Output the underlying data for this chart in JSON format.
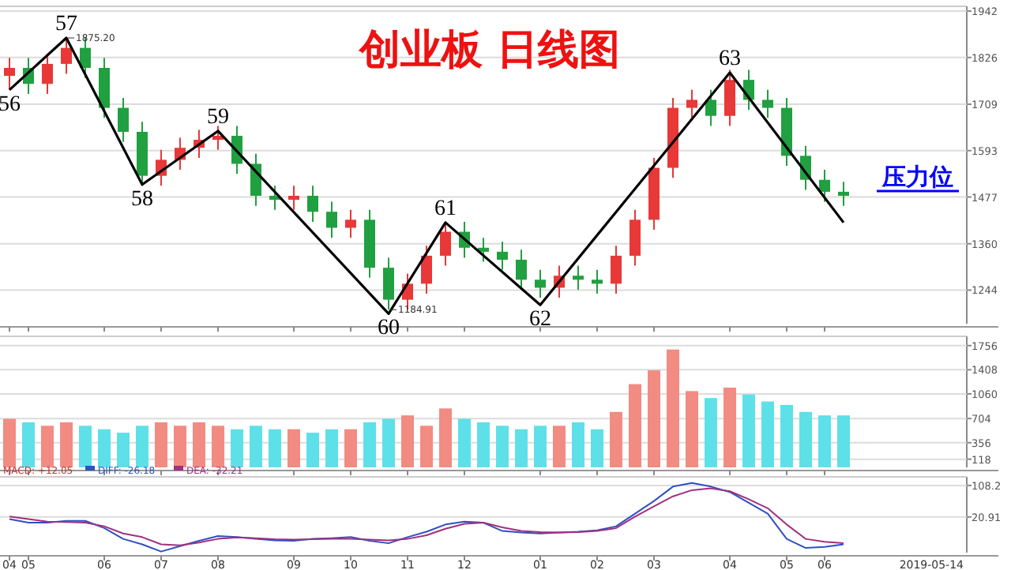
{
  "chart_data": [
    {
      "type": "candlestick",
      "title": "创业板  日线图",
      "ylim": [
        1160,
        1954
      ],
      "yticks": [
        1244,
        1360,
        1477,
        1593,
        1709,
        1826,
        1942
      ],
      "grid": "y",
      "tick_labels": "y",
      "categories": [
        "04",
        "05",
        null,
        null,
        null,
        "06",
        null,
        null,
        "07",
        null,
        null,
        "08",
        null,
        null,
        null,
        "09",
        null,
        null,
        "10",
        null,
        null,
        "11",
        null,
        null,
        "12",
        null,
        null,
        null,
        "01",
        null,
        null,
        "02",
        null,
        null,
        "03",
        null,
        null,
        null,
        "04",
        null,
        null,
        "05",
        null,
        "06",
        null,
        null,
        null,
        null,
        null,
        null,
        null
      ],
      "ohlc": [
        [
          1780,
          1825,
          1745,
          1800
        ],
        [
          1800,
          1825,
          1735,
          1760
        ],
        [
          1760,
          1835,
          1735,
          1810
        ],
        [
          1810,
          1875,
          1785,
          1850
        ],
        [
          1850,
          1875,
          1775,
          1800
        ],
        [
          1800,
          1825,
          1675,
          1700
        ],
        [
          1700,
          1725,
          1615,
          1640
        ],
        [
          1640,
          1665,
          1505,
          1530
        ],
        [
          1530,
          1595,
          1505,
          1570
        ],
        [
          1570,
          1625,
          1545,
          1600
        ],
        [
          1600,
          1645,
          1575,
          1620
        ],
        [
          1620,
          1655,
          1595,
          1630
        ],
        [
          1630,
          1655,
          1535,
          1560
        ],
        [
          1560,
          1585,
          1455,
          1480
        ],
        [
          1480,
          1505,
          1445,
          1470
        ],
        [
          1470,
          1505,
          1445,
          1480
        ],
        [
          1480,
          1505,
          1415,
          1440
        ],
        [
          1440,
          1465,
          1375,
          1400
        ],
        [
          1400,
          1445,
          1375,
          1420
        ],
        [
          1420,
          1445,
          1275,
          1300
        ],
        [
          1300,
          1325,
          1195,
          1220
        ],
        [
          1220,
          1285,
          1195,
          1260
        ],
        [
          1260,
          1355,
          1235,
          1330
        ],
        [
          1330,
          1415,
          1305,
          1390
        ],
        [
          1390,
          1415,
          1325,
          1350
        ],
        [
          1350,
          1375,
          1315,
          1340
        ],
        [
          1340,
          1365,
          1295,
          1320
        ],
        [
          1320,
          1345,
          1245,
          1270
        ],
        [
          1270,
          1295,
          1225,
          1250
        ],
        [
          1250,
          1305,
          1225,
          1280
        ],
        [
          1280,
          1305,
          1245,
          1270
        ],
        [
          1270,
          1295,
          1235,
          1260
        ],
        [
          1260,
          1355,
          1235,
          1330
        ],
        [
          1330,
          1445,
          1305,
          1420
        ],
        [
          1420,
          1575,
          1395,
          1550
        ],
        [
          1550,
          1725,
          1525,
          1700
        ],
        [
          1700,
          1745,
          1675,
          1720
        ],
        [
          1720,
          1745,
          1655,
          1680
        ],
        [
          1680,
          1795,
          1655,
          1770
        ],
        [
          1770,
          1795,
          1695,
          1720
        ],
        [
          1720,
          1745,
          1675,
          1700
        ],
        [
          1700,
          1725,
          1555,
          1580
        ],
        [
          1580,
          1605,
          1495,
          1520
        ],
        [
          1520,
          1545,
          1465,
          1490
        ],
        [
          1490,
          1515,
          1455,
          1480
        ],
        null,
        null,
        null,
        null,
        null,
        null
      ],
      "colors": [
        "#e83838",
        "#20a040",
        "#e83838",
        "#e83838",
        "#20a040",
        "#20a040",
        "#20a040",
        "#20a040",
        "#e83838",
        "#e83838",
        "#e83838",
        "#e83838",
        "#20a040",
        "#20a040",
        "#20a040",
        "#e83838",
        "#20a040",
        "#20a040",
        "#e83838",
        "#20a040",
        "#20a040",
        "#e83838",
        "#e83838",
        "#e83838",
        "#20a040",
        "#20a040",
        "#20a040",
        "#20a040",
        "#20a040",
        "#e83838",
        "#20a040",
        "#20a040",
        "#e83838",
        "#e83838",
        "#e83838",
        "#e83838",
        "#e83838",
        "#20a040",
        "#e83838",
        "#20a040",
        "#20a040",
        "#20a040",
        "#20a040",
        "#20a040",
        "#20a040",
        null,
        null,
        null,
        null,
        null,
        null
      ],
      "series": [
        {
          "type": "line",
          "color": "#000000",
          "values": [
            1745,
            null,
            null,
            1875,
            null,
            null,
            null,
            1508,
            null,
            null,
            null,
            1642,
            null,
            null,
            null,
            null,
            null,
            null,
            null,
            null,
            1185,
            null,
            null,
            1413,
            null,
            null,
            null,
            null,
            1207,
            null,
            null,
            null,
            null,
            null,
            null,
            null,
            null,
            null,
            1788,
            null,
            null,
            null,
            null,
            null,
            1413,
            null,
            null,
            null,
            null,
            null,
            null
          ]
        }
      ],
      "annotations": [
        {
          "text": "56",
          "y": 1745
        },
        {
          "text": "57",
          "y": 1875
        },
        {
          "text": "58",
          "y": 1508
        },
        {
          "text": "59",
          "y": 1642
        },
        {
          "text": "60",
          "y": 1185
        },
        {
          "text": "61",
          "y": 1413
        },
        {
          "text": "62",
          "y": 1207
        },
        {
          "text": "63",
          "y": 1788
        },
        "1875.20",
        "1184.91"
      ],
      "ref_lines": [
        {
          "axis": "y",
          "value": 1492,
          "label": "压力位",
          "color": "#0000ff"
        }
      ]
    },
    {
      "type": "bar",
      "ylim": [
        0,
        1890
      ],
      "yticks": [
        118,
        356,
        704,
        1060,
        1408,
        1756
      ],
      "grid": "y",
      "tick_labels": "y",
      "categories": [
        "04",
        "05",
        null,
        null,
        null,
        "06",
        null,
        null,
        "07",
        null,
        null,
        "08",
        null,
        null,
        null,
        "09",
        null,
        null,
        "10",
        null,
        null,
        "11",
        null,
        null,
        "12",
        null,
        null,
        null,
        "01",
        null,
        null,
        "02",
        null,
        null,
        "03",
        null,
        null,
        null,
        "04",
        null,
        null,
        "05",
        null,
        "06",
        null,
        null,
        null,
        null,
        null,
        null,
        null
      ],
      "values": [
        700,
        650,
        600,
        650,
        600,
        550,
        500,
        600,
        650,
        600,
        650,
        600,
        550,
        600,
        550,
        550,
        500,
        550,
        550,
        650,
        700,
        750,
        600,
        850,
        700,
        650,
        600,
        550,
        600,
        600,
        650,
        550,
        800,
        1200,
        1400,
        1700,
        1100,
        1000,
        1150,
        1050,
        950,
        900,
        800,
        750,
        750,
        null,
        null,
        null,
        null,
        null,
        null
      ],
      "colors": [
        "#f28b82",
        "#5ee0e8",
        "#f28b82",
        "#f28b82",
        "#5ee0e8",
        "#5ee0e8",
        "#5ee0e8",
        "#5ee0e8",
        "#f28b82",
        "#f28b82",
        "#f28b82",
        "#f28b82",
        "#5ee0e8",
        "#5ee0e8",
        "#5ee0e8",
        "#f28b82",
        "#5ee0e8",
        "#5ee0e8",
        "#f28b82",
        "#5ee0e8",
        "#5ee0e8",
        "#f28b82",
        "#f28b82",
        "#f28b82",
        "#5ee0e8",
        "#5ee0e8",
        "#5ee0e8",
        "#5ee0e8",
        "#5ee0e8",
        "#f28b82",
        "#5ee0e8",
        "#5ee0e8",
        "#f28b82",
        "#f28b82",
        "#f28b82",
        "#f28b82",
        "#f28b82",
        "#5ee0e8",
        "#f28b82",
        "#5ee0e8",
        "#5ee0e8",
        "#5ee0e8",
        "#5ee0e8",
        "#5ee0e8",
        "#5ee0e8",
        null,
        null,
        null,
        null,
        null,
        null
      ]
    },
    {
      "type": "line",
      "ylim": [
        -78,
        132
      ],
      "yticks": [
        20.91,
        108.2
      ],
      "grid": "y",
      "legend": "top left",
      "categories": [
        "04",
        "05",
        null,
        null,
        null,
        "06",
        null,
        null,
        "07",
        null,
        null,
        "08",
        null,
        null,
        null,
        "09",
        null,
        null,
        "10",
        null,
        null,
        "11",
        null,
        null,
        "12",
        null,
        null,
        null,
        "01",
        null,
        null,
        "02",
        null,
        null,
        "03",
        null,
        null,
        null,
        "04",
        null,
        null,
        "05",
        null,
        "06",
        null,
        null,
        null,
        null,
        null,
        null,
        null
      ],
      "series": [
        {
          "name": "DIFF: -26.18",
          "color": "#3050c0",
          "values": [
            15,
            5,
            5,
            10,
            10,
            -10,
            -40,
            -55,
            -75,
            -60,
            -45,
            -32,
            -35,
            -40,
            -44,
            -45,
            -40,
            -38,
            -35,
            -45,
            -52,
            -35,
            -20,
            0,
            8,
            5,
            -18,
            -22,
            -25,
            -22,
            -20,
            -16,
            -5,
            30,
            65,
            105,
            115,
            105,
            90,
            60,
            30,
            -40,
            -65,
            -62,
            -55,
            null,
            null,
            null,
            null,
            null,
            null
          ]
        },
        {
          "name": "DEA: -32.21",
          "color": "#a03080",
          "values": [
            22,
            15,
            8,
            7,
            5,
            -5,
            -25,
            -35,
            -55,
            -58,
            -50,
            -40,
            -36,
            -38,
            -41,
            -42,
            -41,
            -40,
            -40,
            -42,
            -44,
            -40,
            -30,
            -12,
            2,
            5,
            -8,
            -18,
            -21,
            -22,
            -21,
            -18,
            -10,
            22,
            50,
            78,
            95,
            100,
            92,
            70,
            45,
            0,
            -40,
            -48,
            -52,
            null,
            null,
            null,
            null,
            null,
            null
          ]
        }
      ],
      "annotations": [
        "MACD: +12.05",
        "2019-05-14"
      ]
    }
  ]
}
